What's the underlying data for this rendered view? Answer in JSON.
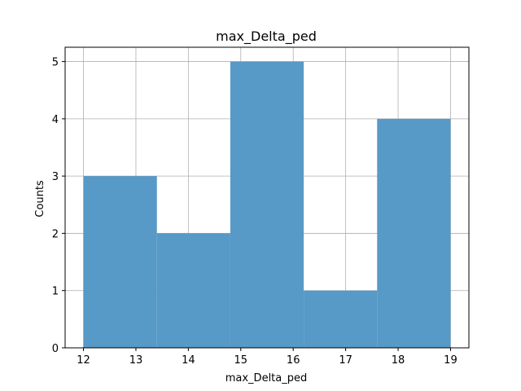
{
  "chart_data": {
    "type": "bar",
    "subtype": "histogram",
    "title": "max_Delta_ped",
    "xlabel": "max_Delta_ped",
    "ylabel": "Counts",
    "bins": [
      {
        "start": 12.0,
        "end": 13.4,
        "count": 3
      },
      {
        "start": 13.4,
        "end": 14.8,
        "count": 2
      },
      {
        "start": 14.8,
        "end": 16.2,
        "count": 5
      },
      {
        "start": 16.2,
        "end": 17.6,
        "count": 1
      },
      {
        "start": 17.6,
        "end": 19.0,
        "count": 4
      }
    ],
    "xlim": [
      11.65,
      19.35
    ],
    "ylim": [
      0,
      5.25
    ],
    "xticks": [
      12,
      13,
      14,
      15,
      16,
      17,
      18,
      19
    ],
    "yticks": [
      0,
      1,
      2,
      3,
      4,
      5
    ],
    "grid": true,
    "bar_color": "#5799c7",
    "grid_color": "#b0b0b0"
  }
}
